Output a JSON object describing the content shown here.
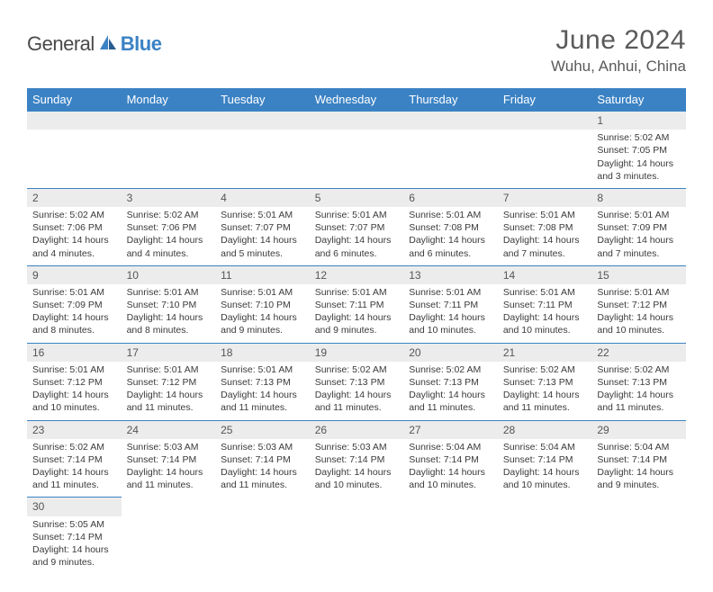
{
  "logo": {
    "text1": "General",
    "text2": "Blue"
  },
  "title": "June 2024",
  "location": "Wuhu, Anhui, China",
  "colors": {
    "header_bg": "#3b82c4",
    "header_text": "#ffffff",
    "daynum_bg": "#ececec",
    "row_border": "#3b82c4",
    "body_text": "#3a3a3a",
    "title_text": "#5a5a5a"
  },
  "weekdays": [
    "Sunday",
    "Monday",
    "Tuesday",
    "Wednesday",
    "Thursday",
    "Friday",
    "Saturday"
  ],
  "weeks": [
    {
      "nums": [
        "",
        "",
        "",
        "",
        "",
        "",
        "1"
      ],
      "cells": [
        null,
        null,
        null,
        null,
        null,
        null,
        {
          "sr": "Sunrise: 5:02 AM",
          "ss": "Sunset: 7:05 PM",
          "dl1": "Daylight: 14 hours",
          "dl2": "and 3 minutes."
        }
      ]
    },
    {
      "nums": [
        "2",
        "3",
        "4",
        "5",
        "6",
        "7",
        "8"
      ],
      "cells": [
        {
          "sr": "Sunrise: 5:02 AM",
          "ss": "Sunset: 7:06 PM",
          "dl1": "Daylight: 14 hours",
          "dl2": "and 4 minutes."
        },
        {
          "sr": "Sunrise: 5:02 AM",
          "ss": "Sunset: 7:06 PM",
          "dl1": "Daylight: 14 hours",
          "dl2": "and 4 minutes."
        },
        {
          "sr": "Sunrise: 5:01 AM",
          "ss": "Sunset: 7:07 PM",
          "dl1": "Daylight: 14 hours",
          "dl2": "and 5 minutes."
        },
        {
          "sr": "Sunrise: 5:01 AM",
          "ss": "Sunset: 7:07 PM",
          "dl1": "Daylight: 14 hours",
          "dl2": "and 6 minutes."
        },
        {
          "sr": "Sunrise: 5:01 AM",
          "ss": "Sunset: 7:08 PM",
          "dl1": "Daylight: 14 hours",
          "dl2": "and 6 minutes."
        },
        {
          "sr": "Sunrise: 5:01 AM",
          "ss": "Sunset: 7:08 PM",
          "dl1": "Daylight: 14 hours",
          "dl2": "and 7 minutes."
        },
        {
          "sr": "Sunrise: 5:01 AM",
          "ss": "Sunset: 7:09 PM",
          "dl1": "Daylight: 14 hours",
          "dl2": "and 7 minutes."
        }
      ]
    },
    {
      "nums": [
        "9",
        "10",
        "11",
        "12",
        "13",
        "14",
        "15"
      ],
      "cells": [
        {
          "sr": "Sunrise: 5:01 AM",
          "ss": "Sunset: 7:09 PM",
          "dl1": "Daylight: 14 hours",
          "dl2": "and 8 minutes."
        },
        {
          "sr": "Sunrise: 5:01 AM",
          "ss": "Sunset: 7:10 PM",
          "dl1": "Daylight: 14 hours",
          "dl2": "and 8 minutes."
        },
        {
          "sr": "Sunrise: 5:01 AM",
          "ss": "Sunset: 7:10 PM",
          "dl1": "Daylight: 14 hours",
          "dl2": "and 9 minutes."
        },
        {
          "sr": "Sunrise: 5:01 AM",
          "ss": "Sunset: 7:11 PM",
          "dl1": "Daylight: 14 hours",
          "dl2": "and 9 minutes."
        },
        {
          "sr": "Sunrise: 5:01 AM",
          "ss": "Sunset: 7:11 PM",
          "dl1": "Daylight: 14 hours",
          "dl2": "and 10 minutes."
        },
        {
          "sr": "Sunrise: 5:01 AM",
          "ss": "Sunset: 7:11 PM",
          "dl1": "Daylight: 14 hours",
          "dl2": "and 10 minutes."
        },
        {
          "sr": "Sunrise: 5:01 AM",
          "ss": "Sunset: 7:12 PM",
          "dl1": "Daylight: 14 hours",
          "dl2": "and 10 minutes."
        }
      ]
    },
    {
      "nums": [
        "16",
        "17",
        "18",
        "19",
        "20",
        "21",
        "22"
      ],
      "cells": [
        {
          "sr": "Sunrise: 5:01 AM",
          "ss": "Sunset: 7:12 PM",
          "dl1": "Daylight: 14 hours",
          "dl2": "and 10 minutes."
        },
        {
          "sr": "Sunrise: 5:01 AM",
          "ss": "Sunset: 7:12 PM",
          "dl1": "Daylight: 14 hours",
          "dl2": "and 11 minutes."
        },
        {
          "sr": "Sunrise: 5:01 AM",
          "ss": "Sunset: 7:13 PM",
          "dl1": "Daylight: 14 hours",
          "dl2": "and 11 minutes."
        },
        {
          "sr": "Sunrise: 5:02 AM",
          "ss": "Sunset: 7:13 PM",
          "dl1": "Daylight: 14 hours",
          "dl2": "and 11 minutes."
        },
        {
          "sr": "Sunrise: 5:02 AM",
          "ss": "Sunset: 7:13 PM",
          "dl1": "Daylight: 14 hours",
          "dl2": "and 11 minutes."
        },
        {
          "sr": "Sunrise: 5:02 AM",
          "ss": "Sunset: 7:13 PM",
          "dl1": "Daylight: 14 hours",
          "dl2": "and 11 minutes."
        },
        {
          "sr": "Sunrise: 5:02 AM",
          "ss": "Sunset: 7:13 PM",
          "dl1": "Daylight: 14 hours",
          "dl2": "and 11 minutes."
        }
      ]
    },
    {
      "nums": [
        "23",
        "24",
        "25",
        "26",
        "27",
        "28",
        "29"
      ],
      "cells": [
        {
          "sr": "Sunrise: 5:02 AM",
          "ss": "Sunset: 7:14 PM",
          "dl1": "Daylight: 14 hours",
          "dl2": "and 11 minutes."
        },
        {
          "sr": "Sunrise: 5:03 AM",
          "ss": "Sunset: 7:14 PM",
          "dl1": "Daylight: 14 hours",
          "dl2": "and 11 minutes."
        },
        {
          "sr": "Sunrise: 5:03 AM",
          "ss": "Sunset: 7:14 PM",
          "dl1": "Daylight: 14 hours",
          "dl2": "and 11 minutes."
        },
        {
          "sr": "Sunrise: 5:03 AM",
          "ss": "Sunset: 7:14 PM",
          "dl1": "Daylight: 14 hours",
          "dl2": "and 10 minutes."
        },
        {
          "sr": "Sunrise: 5:04 AM",
          "ss": "Sunset: 7:14 PM",
          "dl1": "Daylight: 14 hours",
          "dl2": "and 10 minutes."
        },
        {
          "sr": "Sunrise: 5:04 AM",
          "ss": "Sunset: 7:14 PM",
          "dl1": "Daylight: 14 hours",
          "dl2": "and 10 minutes."
        },
        {
          "sr": "Sunrise: 5:04 AM",
          "ss": "Sunset: 7:14 PM",
          "dl1": "Daylight: 14 hours",
          "dl2": "and 9 minutes."
        }
      ]
    },
    {
      "nums": [
        "30",
        "",
        "",
        "",
        "",
        "",
        ""
      ],
      "cells": [
        {
          "sr": "Sunrise: 5:05 AM",
          "ss": "Sunset: 7:14 PM",
          "dl1": "Daylight: 14 hours",
          "dl2": "and 9 minutes."
        },
        null,
        null,
        null,
        null,
        null,
        null
      ]
    }
  ]
}
